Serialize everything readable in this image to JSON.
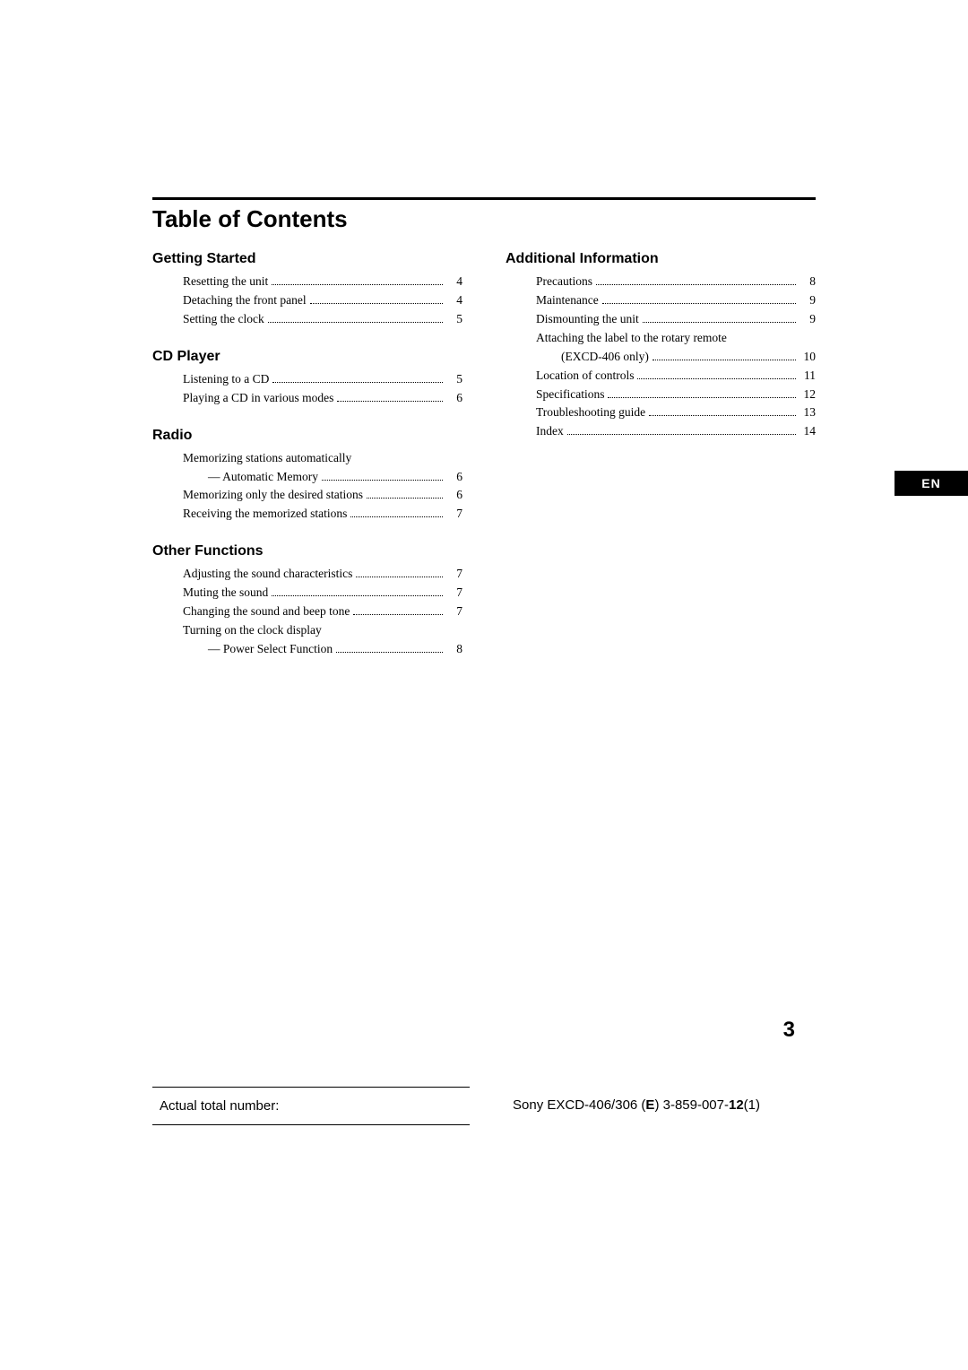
{
  "title": "Table of Contents",
  "colors": {
    "text": "#000000",
    "background": "#ffffff",
    "section_heading": "#000000"
  },
  "typography": {
    "title_fontsize_pt": 20,
    "section_fontsize_pt": 12,
    "body_fontsize_pt": 10,
    "title_font": "Helvetica-Bold",
    "body_font": "Serif"
  },
  "sections_left": [
    {
      "heading": "Getting Started",
      "entries": [
        {
          "label": "Resetting the unit",
          "page": "4"
        },
        {
          "label": "Detaching the front panel",
          "page": "4"
        },
        {
          "label": "Setting the clock",
          "page": "5"
        }
      ]
    },
    {
      "heading": "CD Player",
      "entries": [
        {
          "label": "Listening to a CD",
          "page": "5"
        },
        {
          "label": "Playing a CD in various modes",
          "page": "6"
        }
      ]
    },
    {
      "heading": "Radio",
      "entries": [
        {
          "label": "Memorizing stations automatically",
          "no_page": true
        },
        {
          "label": "— Automatic Memory",
          "page": "6",
          "indent": true
        },
        {
          "label": "Memorizing only the desired stations",
          "page": "6"
        },
        {
          "label": "Receiving the memorized stations",
          "page": "7"
        }
      ]
    },
    {
      "heading": "Other Functions",
      "entries": [
        {
          "label": "Adjusting the sound characteristics",
          "page": "7"
        },
        {
          "label": "Muting the sound",
          "page": "7"
        },
        {
          "label": "Changing the sound and beep tone",
          "page": "7"
        },
        {
          "label": "Turning on the clock display",
          "no_page": true
        },
        {
          "label": "— Power Select Function",
          "page": "8",
          "indent": true
        }
      ]
    }
  ],
  "sections_right": [
    {
      "heading": "Additional Information",
      "entries": [
        {
          "label": "Precautions",
          "page": "8"
        },
        {
          "label": "Maintenance",
          "page": "9"
        },
        {
          "label": "Dismounting the unit",
          "page": "9"
        },
        {
          "label": "Attaching the label to the rotary remote",
          "no_page": true
        },
        {
          "label": "(EXCD-406 only)",
          "page": "10",
          "indent": true
        },
        {
          "label": "Location of controls",
          "page": "11"
        },
        {
          "label": "Specifications",
          "page": "12"
        },
        {
          "label": "Troubleshooting guide",
          "page": "13"
        },
        {
          "label": "Index",
          "page": "14"
        }
      ]
    }
  ],
  "lang_tab": "EN",
  "page_number": "3",
  "footer": {
    "left": "Actual total number:",
    "right_prefix": "Sony EXCD-406/306 (",
    "right_bold1": "E",
    "right_mid": ")  3-859-007-",
    "right_bold2": "12",
    "right_suffix": "(1)"
  }
}
